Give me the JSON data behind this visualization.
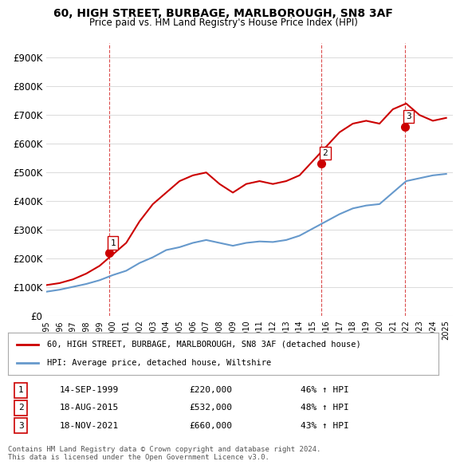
{
  "title": "60, HIGH STREET, BURBAGE, MARLBOROUGH, SN8 3AF",
  "subtitle": "Price paid vs. HM Land Registry's House Price Index (HPI)",
  "ylabel": "",
  "ylim": [
    0,
    950000
  ],
  "yticks": [
    0,
    100000,
    200000,
    300000,
    400000,
    500000,
    600000,
    700000,
    800000,
    900000
  ],
  "ytick_labels": [
    "£0",
    "£100K",
    "£200K",
    "£300K",
    "£400K",
    "£500K",
    "£600K",
    "£700K",
    "£800K",
    "£900K"
  ],
  "legend_entry1": "60, HIGH STREET, BURBAGE, MARLBOROUGH, SN8 3AF (detached house)",
  "legend_entry2": "HPI: Average price, detached house, Wiltshire",
  "sale1_date": "14-SEP-1999",
  "sale1_price": 220000,
  "sale1_hpi": "46% ↑ HPI",
  "sale2_date": "18-AUG-2015",
  "sale2_price": 532000,
  "sale2_hpi": "48% ↑ HPI",
  "sale3_date": "18-NOV-2021",
  "sale3_price": 660000,
  "sale3_hpi": "43% ↑ HPI",
  "footer": "Contains HM Land Registry data © Crown copyright and database right 2024.\nThis data is licensed under the Open Government Licence v3.0.",
  "sale_color": "#cc0000",
  "hpi_color": "#6699cc",
  "vline_color": "#cc0000",
  "background_color": "#ffffff",
  "hpi_years": [
    1995,
    1996,
    1997,
    1998,
    1999,
    2000,
    2001,
    2002,
    2003,
    2004,
    2005,
    2006,
    2007,
    2008,
    2009,
    2010,
    2011,
    2012,
    2013,
    2014,
    2015,
    2016,
    2017,
    2018,
    2019,
    2020,
    2021,
    2022,
    2023,
    2024,
    2025
  ],
  "hpi_values": [
    85000,
    92000,
    102000,
    112000,
    125000,
    143000,
    158000,
    185000,
    205000,
    230000,
    240000,
    255000,
    265000,
    255000,
    245000,
    255000,
    260000,
    258000,
    265000,
    280000,
    305000,
    330000,
    355000,
    375000,
    385000,
    390000,
    430000,
    470000,
    480000,
    490000,
    495000
  ],
  "price_years": [
    1995,
    1996,
    1997,
    1998,
    1999,
    2000,
    2001,
    2002,
    2003,
    2004,
    2005,
    2006,
    2007,
    2008,
    2009,
    2010,
    2011,
    2012,
    2013,
    2014,
    2015,
    2016,
    2017,
    2018,
    2019,
    2020,
    2021,
    2022,
    2023,
    2024,
    2025
  ],
  "price_values": [
    108000,
    115000,
    128000,
    148000,
    175000,
    215000,
    255000,
    330000,
    390000,
    430000,
    470000,
    490000,
    500000,
    460000,
    430000,
    460000,
    470000,
    460000,
    470000,
    490000,
    540000,
    590000,
    640000,
    670000,
    680000,
    670000,
    720000,
    740000,
    700000,
    680000,
    690000
  ],
  "sale_years": [
    1999.71,
    2015.63,
    2021.89
  ],
  "sale_prices": [
    220000,
    532000,
    660000
  ],
  "sale_labels": [
    "1",
    "2",
    "3"
  ],
  "vline_years": [
    1999.71,
    2015.63,
    2021.89
  ],
  "xlim_start": 1995,
  "xlim_end": 2025.5
}
